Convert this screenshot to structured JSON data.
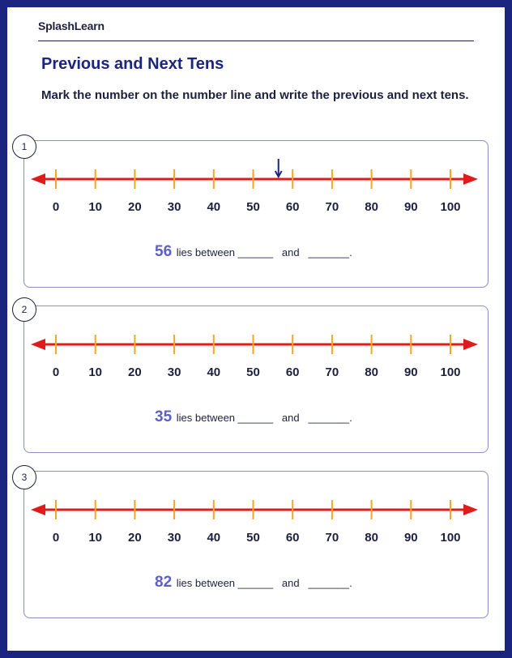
{
  "header": {
    "brand": "SplashLearn",
    "title": "Previous and Next Tens",
    "instruction": "Mark the number on the number line and write the previous and next tens."
  },
  "number_line": {
    "ticks": [
      "0",
      "10",
      "20",
      "30",
      "40",
      "50",
      "60",
      "70",
      "80",
      "90",
      "100"
    ],
    "min": 0,
    "max": 100,
    "colors": {
      "line": "#e01b1b",
      "tick": "#f5a623",
      "label": "#1d1f3f",
      "marker": "#1b2580"
    }
  },
  "problems": [
    {
      "index": "1",
      "number": "56",
      "text": "lies between",
      "blank1": "______",
      "and": "and",
      "blank2": "_______.",
      "marked_value": 56
    },
    {
      "index": "2",
      "number": "35",
      "text": "lies between",
      "blank1": "______",
      "and": "and",
      "blank2": "_______.",
      "marked_value": null
    },
    {
      "index": "3",
      "number": "82",
      "text": "lies between",
      "blank1": "______",
      "and": "and",
      "blank2": "_______.",
      "marked_value": null
    }
  ]
}
